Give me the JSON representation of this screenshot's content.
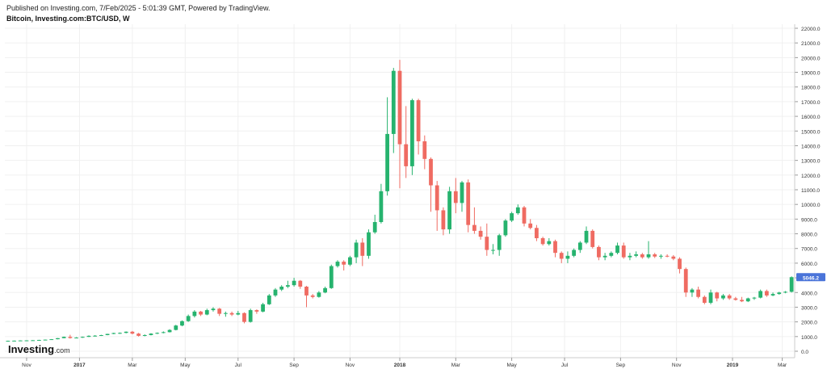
{
  "header": {
    "published": "Published on Investing.com, 7/Feb/2025 - 5:01:39 GMT, Powered by TradingView.",
    "symbol": "Bitcoin, Investing.com:BTC/USD, W"
  },
  "watermark": {
    "brand": "Investing",
    "suffix": ".com"
  },
  "colors": {
    "up": "#26b36e",
    "down": "#ef6b62",
    "last_price_bg": "#4a74d9",
    "grid": "#f0f0f0",
    "axis": "#cccccc"
  },
  "chart_data": {
    "type": "candlestick",
    "title": "Bitcoin, Investing.com:BTC/USD, W",
    "interval": "W",
    "ylim": [
      0,
      22000
    ],
    "y_ticks": [
      0,
      1000,
      2000,
      3000,
      4000,
      5000,
      6000,
      7000,
      8000,
      9000,
      10000,
      11000,
      12000,
      13000,
      14000,
      15000,
      16000,
      17000,
      18000,
      19000,
      20000,
      21000,
      22000
    ],
    "y_tick_labels": [
      "0.0",
      "1000.0",
      "2000.0",
      "3000.0",
      "4000.0",
      "5000.0",
      "6000.0",
      "7000.0",
      "8000.0",
      "9000.0",
      "10000.0",
      "11000.0",
      "12000.0",
      "13000.0",
      "14000.0",
      "15000.0",
      "16000.0",
      "17000.0",
      "18000.0",
      "19000.0",
      "20000.0",
      "21000.0",
      "22000.0"
    ],
    "x_range": [
      0,
      127
    ],
    "x_ticks": [
      {
        "pos": 3,
        "label": "Nov",
        "bold": false
      },
      {
        "pos": 11.5,
        "label": "2017",
        "bold": true
      },
      {
        "pos": 20,
        "label": "Mar",
        "bold": false
      },
      {
        "pos": 28.5,
        "label": "May",
        "bold": false
      },
      {
        "pos": 37,
        "label": "Jul",
        "bold": false
      },
      {
        "pos": 46,
        "label": "Sep",
        "bold": false
      },
      {
        "pos": 55,
        "label": "Nov",
        "bold": false
      },
      {
        "pos": 63,
        "label": "2018",
        "bold": true
      },
      {
        "pos": 72,
        "label": "Mar",
        "bold": false
      },
      {
        "pos": 81,
        "label": "May",
        "bold": false
      },
      {
        "pos": 89.5,
        "label": "Jul",
        "bold": false
      },
      {
        "pos": 98.5,
        "label": "Sep",
        "bold": false
      },
      {
        "pos": 107.5,
        "label": "Nov",
        "bold": false
      },
      {
        "pos": 116.5,
        "label": "2019",
        "bold": true
      },
      {
        "pos": 124.5,
        "label": "Mar",
        "bold": false
      }
    ],
    "last_price": 5046.2,
    "last_price_label": "5046.2",
    "candles": [
      [
        700,
        720,
        690,
        710
      ],
      [
        710,
        730,
        700,
        720
      ],
      [
        720,
        745,
        715,
        735
      ],
      [
        735,
        750,
        725,
        740
      ],
      [
        740,
        760,
        735,
        750
      ],
      [
        750,
        780,
        740,
        770
      ],
      [
        770,
        800,
        760,
        790
      ],
      [
        790,
        830,
        785,
        820
      ],
      [
        820,
        900,
        810,
        890
      ],
      [
        890,
        1000,
        880,
        980
      ],
      [
        980,
        1120,
        860,
        900
      ],
      [
        900,
        960,
        880,
        930
      ],
      [
        930,
        1000,
        910,
        980
      ],
      [
        980,
        1080,
        970,
        1050
      ],
      [
        1050,
        1100,
        1000,
        1060
      ],
      [
        1060,
        1120,
        1040,
        1100
      ],
      [
        1100,
        1190,
        1090,
        1180
      ],
      [
        1180,
        1260,
        1160,
        1240
      ],
      [
        1240,
        1280,
        1180,
        1250
      ],
      [
        1250,
        1350,
        1220,
        1330
      ],
      [
        1330,
        1380,
        1150,
        1200
      ],
      [
        1200,
        1250,
        1000,
        1050
      ],
      [
        1050,
        1150,
        1020,
        1100
      ],
      [
        1100,
        1230,
        1080,
        1200
      ],
      [
        1200,
        1280,
        1170,
        1250
      ],
      [
        1250,
        1350,
        1220,
        1300
      ],
      [
        1300,
        1500,
        1280,
        1450
      ],
      [
        1450,
        1800,
        1420,
        1750
      ],
      [
        1750,
        2100,
        1700,
        2050
      ],
      [
        2050,
        2500,
        2000,
        2400
      ],
      [
        2400,
        2800,
        2300,
        2700
      ],
      [
        2700,
        2750,
        2400,
        2500
      ],
      [
        2500,
        2900,
        2450,
        2800
      ],
      [
        2800,
        3000,
        2700,
        2900
      ],
      [
        2900,
        2950,
        2400,
        2550
      ],
      [
        2550,
        2700,
        2350,
        2600
      ],
      [
        2600,
        2700,
        2400,
        2500
      ],
      [
        2500,
        2750,
        2450,
        2600
      ],
      [
        2600,
        2650,
        1900,
        2000
      ],
      [
        2000,
        2900,
        1950,
        2800
      ],
      [
        2800,
        2850,
        2550,
        2700
      ],
      [
        2700,
        3300,
        2650,
        3200
      ],
      [
        3200,
        3900,
        3150,
        3800
      ],
      [
        3800,
        4300,
        3700,
        4200
      ],
      [
        4200,
        4500,
        4100,
        4400
      ],
      [
        4400,
        4800,
        4300,
        4500
      ],
      [
        4500,
        5000,
        4400,
        4800
      ],
      [
        4800,
        4850,
        4250,
        4400
      ],
      [
        4400,
        4450,
        3000,
        3800
      ],
      [
        3800,
        3900,
        3600,
        3700
      ],
      [
        3700,
        4100,
        3650,
        4000
      ],
      [
        4000,
        4400,
        3950,
        4300
      ],
      [
        4300,
        5900,
        4250,
        5800
      ],
      [
        5800,
        6200,
        5700,
        6100
      ],
      [
        6100,
        6200,
        5500,
        5900
      ],
      [
        5900,
        6500,
        5800,
        6400
      ],
      [
        6400,
        7600,
        6000,
        7400
      ],
      [
        7400,
        7700,
        5800,
        6500
      ],
      [
        6500,
        8300,
        6300,
        8100
      ],
      [
        8100,
        9300,
        8000,
        8800
      ],
      [
        8800,
        11400,
        8700,
        10900
      ],
      [
        10900,
        17300,
        10600,
        14800
      ],
      [
        14800,
        19300,
        13500,
        19100
      ],
      [
        19100,
        19850,
        11100,
        14100
      ],
      [
        14100,
        16700,
        11800,
        12600
      ],
      [
        12600,
        17200,
        12000,
        17100
      ],
      [
        17100,
        17200,
        13400,
        14300
      ],
      [
        14300,
        14700,
        12400,
        13100
      ],
      [
        13100,
        13200,
        9500,
        11300
      ],
      [
        11300,
        11600,
        8200,
        9600
      ],
      [
        9600,
        9800,
        7900,
        8300
      ],
      [
        8300,
        11200,
        8000,
        10900
      ],
      [
        10900,
        11800,
        9400,
        10100
      ],
      [
        10100,
        11600,
        9500,
        11500
      ],
      [
        11500,
        11700,
        8100,
        8600
      ],
      [
        8600,
        9800,
        8000,
        8200
      ],
      [
        8200,
        8500,
        7600,
        7800
      ],
      [
        7800,
        8700,
        6500,
        6900
      ],
      [
        6900,
        7300,
        6600,
        6900
      ],
      [
        6900,
        8000,
        6500,
        7900
      ],
      [
        7900,
        9000,
        7800,
        8900
      ],
      [
        8900,
        9500,
        8800,
        9400
      ],
      [
        9400,
        10000,
        9300,
        9800
      ],
      [
        9800,
        9900,
        8500,
        8700
      ],
      [
        8700,
        9000,
        8300,
        8400
      ],
      [
        8400,
        8600,
        7500,
        7700
      ],
      [
        7700,
        7800,
        7200,
        7300
      ],
      [
        7300,
        7700,
        7200,
        7500
      ],
      [
        7500,
        7600,
        6400,
        6700
      ],
      [
        6700,
        6800,
        6000,
        6300
      ],
      [
        6300,
        6800,
        6000,
        6500
      ],
      [
        6500,
        7000,
        6400,
        6900
      ],
      [
        6900,
        7500,
        6700,
        7400
      ],
      [
        7400,
        8500,
        7300,
        8200
      ],
      [
        8200,
        8300,
        7000,
        7100
      ],
      [
        7100,
        7200,
        6200,
        6400
      ],
      [
        6400,
        6700,
        6200,
        6500
      ],
      [
        6500,
        6800,
        6400,
        6700
      ],
      [
        6700,
        7400,
        6600,
        7200
      ],
      [
        7200,
        7400,
        6300,
        6400
      ],
      [
        6400,
        6700,
        6200,
        6500
      ],
      [
        6500,
        6800,
        6400,
        6600
      ],
      [
        6600,
        6700,
        6300,
        6400
      ],
      [
        6400,
        7500,
        6300,
        6600
      ],
      [
        6600,
        6700,
        6350,
        6450
      ],
      [
        6450,
        6600,
        6300,
        6500
      ],
      [
        6500,
        6600,
        6400,
        6450
      ],
      [
        6450,
        6550,
        6200,
        6300
      ],
      [
        6300,
        6400,
        5300,
        5600
      ],
      [
        5600,
        5700,
        3700,
        4000
      ],
      [
        4000,
        4300,
        3700,
        4200
      ],
      [
        4200,
        4400,
        3600,
        3700
      ],
      [
        3700,
        3800,
        3200,
        3300
      ],
      [
        3300,
        4200,
        3200,
        4000
      ],
      [
        4000,
        4050,
        3400,
        3600
      ],
      [
        3600,
        3900,
        3500,
        3800
      ],
      [
        3800,
        3900,
        3500,
        3600
      ],
      [
        3600,
        3700,
        3450,
        3500
      ],
      [
        3500,
        3700,
        3350,
        3400
      ],
      [
        3400,
        3650,
        3350,
        3600
      ],
      [
        3600,
        3700,
        3500,
        3650
      ],
      [
        3650,
        4200,
        3600,
        4100
      ],
      [
        4100,
        4200,
        3700,
        3800
      ],
      [
        3800,
        4000,
        3750,
        3900
      ],
      [
        3900,
        4050,
        3850,
        4000
      ],
      [
        4000,
        4100,
        3950,
        4050
      ],
      [
        4050,
        5100,
        4000,
        5046.2
      ]
    ]
  }
}
